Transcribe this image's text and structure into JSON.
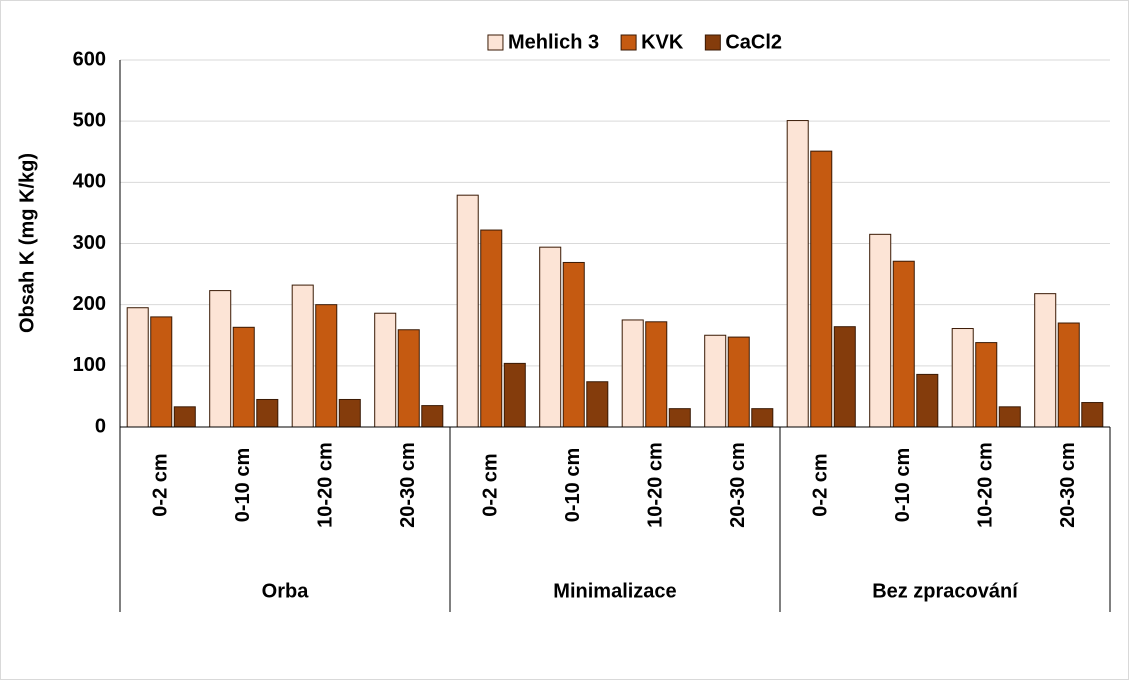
{
  "chart_data": {
    "type": "bar",
    "y_label": "Obsah K (mg K/kg)",
    "groups": [
      {
        "name": "Orba",
        "categories": [
          "0-2 cm",
          "0-10 cm",
          "10-20 cm",
          "20-30 cm"
        ]
      },
      {
        "name": "Minimalizace",
        "categories": [
          "0-2 cm",
          "0-10 cm",
          "10-20 cm",
          "20-30 cm"
        ]
      },
      {
        "name": "Bez zpracování",
        "categories": [
          "0-2 cm",
          "0-10 cm",
          "10-20 cm",
          "20-30 cm"
        ]
      }
    ],
    "series": [
      {
        "name": "Mehlich 3",
        "color": "#fce4d6",
        "values": [
          195,
          223,
          232,
          186,
          379,
          294,
          175,
          150,
          501,
          315,
          161,
          218
        ]
      },
      {
        "name": "KVK",
        "color": "#c55a11",
        "values": [
          180,
          163,
          200,
          159,
          322,
          269,
          172,
          147,
          451,
          271,
          138,
          170
        ]
      },
      {
        "name": "CaCl2",
        "color": "#843c0c",
        "values": [
          33,
          45,
          45,
          35,
          104,
          74,
          30,
          30,
          164,
          86,
          33,
          40
        ]
      }
    ],
    "ylim": [
      0,
      600
    ],
    "yticks": [
      0,
      100,
      200,
      300,
      400,
      500,
      600
    ],
    "grid": true,
    "legend": "top"
  }
}
